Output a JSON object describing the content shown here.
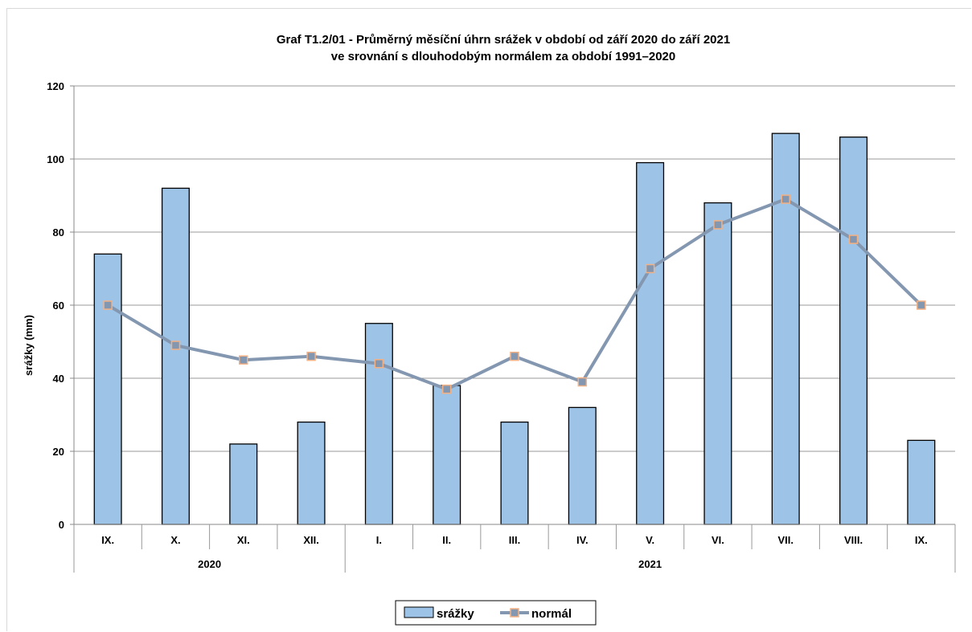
{
  "chart_data": {
    "type": "bar",
    "title_line1": "Graf T1.2/01 -  Průměrný měsíční úhrn srážek v období od září 2020 do září 2021",
    "title_line2": "ve srovnání s dlouhodobým normálem za období 1991–2020",
    "ylabel": "srážky (mm)",
    "xlabel": "",
    "ylim": [
      0,
      120
    ],
    "yticks": [
      0,
      20,
      40,
      60,
      80,
      100,
      120
    ],
    "grid": true,
    "legend_position": "bottom",
    "categories": [
      "IX.",
      "X.",
      "XI.",
      "XII.",
      "I.",
      "II.",
      "III.",
      "IV.",
      "V.",
      "VI.",
      "VII.",
      "VIII.",
      "IX."
    ],
    "groups": [
      {
        "label": "2020",
        "count": 4
      },
      {
        "label": "2021",
        "count": 9
      }
    ],
    "series": [
      {
        "name": "srážky",
        "type": "bar",
        "color": "#9dc3e6",
        "values": [
          74,
          92,
          22,
          28,
          55,
          38,
          28,
          32,
          99,
          88,
          107,
          106,
          23
        ]
      },
      {
        "name": "normál",
        "type": "line",
        "color": "#8497b0",
        "marker_color": "#f4b183",
        "values": [
          60,
          49,
          45,
          46,
          44,
          37,
          46,
          39,
          70,
          82,
          89,
          78,
          60
        ]
      }
    ]
  }
}
